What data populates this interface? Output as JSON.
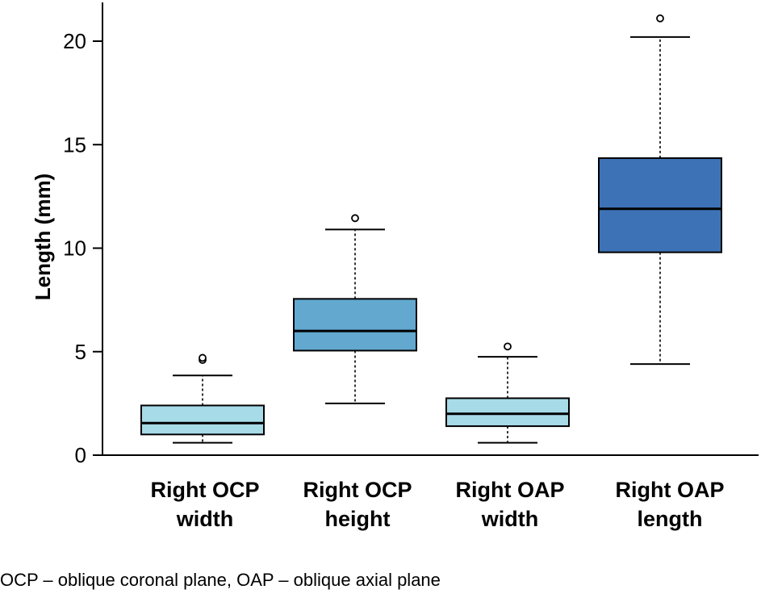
{
  "chart_data": {
    "type": "box",
    "ylabel": "Length (mm)",
    "ylim": [
      0,
      22
    ],
    "yticks": [
      0,
      5,
      10,
      15,
      20
    ],
    "grid": false,
    "categories": [
      [
        "Right OCP",
        "width"
      ],
      [
        "Right OCP",
        "height"
      ],
      [
        "Right OAP",
        "width"
      ],
      [
        "Right OAP",
        "length"
      ]
    ],
    "boxes": [
      {
        "whisker_low": 0.6,
        "q1": 1.0,
        "median": 1.55,
        "q3": 2.4,
        "whisker_high": 3.85,
        "outliers": [
          4.6,
          4.7
        ],
        "color": "#a7dbe8"
      },
      {
        "whisker_low": 2.5,
        "q1": 5.05,
        "median": 6.0,
        "q3": 7.55,
        "whisker_high": 10.9,
        "outliers": [
          11.45
        ],
        "color": "#62a8cf"
      },
      {
        "whisker_low": 0.6,
        "q1": 1.4,
        "median": 2.0,
        "q3": 2.75,
        "whisker_high": 4.75,
        "outliers": [
          5.25
        ],
        "color": "#a7dbe8"
      },
      {
        "whisker_low": 4.4,
        "q1": 9.8,
        "median": 11.9,
        "q3": 14.35,
        "whisker_high": 20.2,
        "outliers": [
          21.1
        ],
        "color": "#3d73b6"
      }
    ]
  },
  "footnote": "OCP – oblique coronal plane, OAP – oblique axial plane"
}
